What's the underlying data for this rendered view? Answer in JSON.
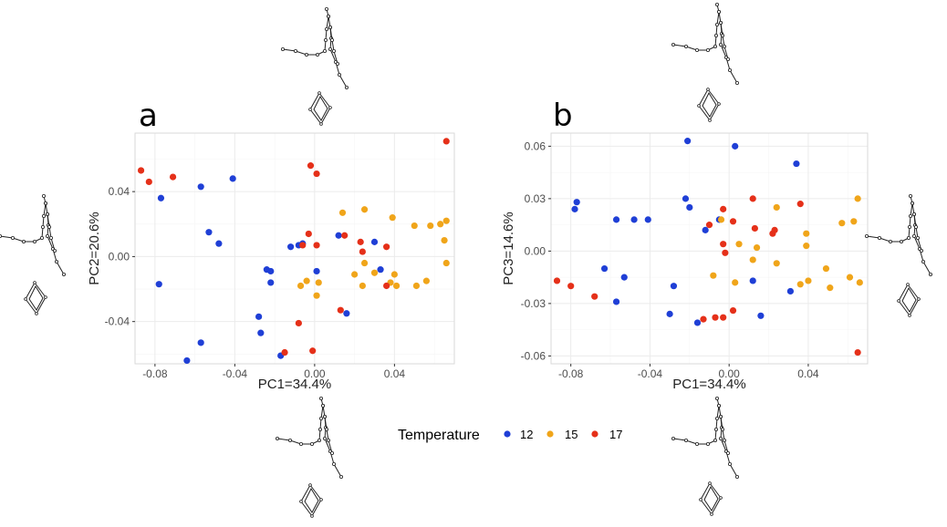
{
  "figure": {
    "panel_labels": [
      "a",
      "b"
    ],
    "legend": {
      "title": "Temperature",
      "items": [
        {
          "label": "12",
          "color": "#1f3fd6"
        },
        {
          "label": "15",
          "color": "#f0a51a"
        },
        {
          "label": "17",
          "color": "#e53019"
        }
      ],
      "position": "bottom-center"
    },
    "icons": [
      "wing-shape-icon",
      "genitalia-shape-icon"
    ]
  },
  "chart_data": [
    {
      "type": "scatter",
      "panel": "a",
      "title": "",
      "xlabel": "PC1=34.4%",
      "ylabel": "PC2=20.6%",
      "xlim": [
        -0.09,
        0.07
      ],
      "ylim": [
        -0.066,
        0.076
      ],
      "xticks": [
        -0.08,
        -0.04,
        0.0,
        0.04
      ],
      "xtick_labels": [
        "-0.08",
        "-0.04",
        "0.00",
        "0.04"
      ],
      "yticks": [
        -0.04,
        0.0,
        0.04
      ],
      "ytick_labels": [
        "-0.04",
        "0.00",
        "0.04"
      ],
      "grid": true,
      "series": [
        {
          "name": "12",
          "color": "#1f3fd6",
          "points": [
            [
              -0.077,
              0.036
            ],
            [
              -0.078,
              -0.017
            ],
            [
              -0.057,
              0.043
            ],
            [
              -0.041,
              0.048
            ],
            [
              -0.053,
              0.015
            ],
            [
              -0.048,
              0.008
            ],
            [
              -0.022,
              -0.009
            ],
            [
              -0.024,
              -0.008
            ],
            [
              -0.022,
              -0.016
            ],
            [
              -0.028,
              -0.037
            ],
            [
              -0.027,
              -0.047
            ],
            [
              -0.057,
              -0.053
            ],
            [
              -0.064,
              -0.064
            ],
            [
              -0.017,
              -0.061
            ],
            [
              -0.012,
              0.006
            ],
            [
              -0.008,
              0.007
            ],
            [
              -0.006,
              0.008
            ],
            [
              0.001,
              -0.009
            ],
            [
              0.012,
              0.013
            ],
            [
              0.016,
              -0.035
            ],
            [
              0.03,
              0.009
            ],
            [
              0.033,
              -0.008
            ]
          ]
        },
        {
          "name": "15",
          "color": "#f0a51a",
          "points": [
            [
              0.014,
              0.027
            ],
            [
              0.025,
              0.029
            ],
            [
              0.039,
              0.024
            ],
            [
              0.05,
              0.019
            ],
            [
              0.058,
              0.019
            ],
            [
              0.063,
              0.02
            ],
            [
              0.066,
              0.022
            ],
            [
              0.065,
              0.01
            ],
            [
              0.066,
              -0.004
            ],
            [
              0.025,
              -0.004
            ],
            [
              0.02,
              -0.011
            ],
            [
              0.03,
              -0.01
            ],
            [
              0.038,
              -0.016
            ],
            [
              0.04,
              -0.011
            ],
            [
              0.041,
              -0.018
            ],
            [
              0.051,
              -0.018
            ],
            [
              0.056,
              -0.015
            ],
            [
              -0.004,
              -0.015
            ],
            [
              -0.007,
              -0.018
            ],
            [
              0.002,
              -0.016
            ],
            [
              0.001,
              -0.024
            ],
            [
              0.024,
              -0.018
            ]
          ]
        },
        {
          "name": "17",
          "color": "#e53019",
          "points": [
            [
              -0.087,
              0.053
            ],
            [
              -0.083,
              0.046
            ],
            [
              -0.071,
              0.049
            ],
            [
              -0.002,
              0.056
            ],
            [
              0.001,
              0.051
            ],
            [
              0.066,
              0.071
            ],
            [
              -0.003,
              0.014
            ],
            [
              -0.006,
              0.007
            ],
            [
              0.001,
              0.007
            ],
            [
              0.015,
              0.013
            ],
            [
              0.023,
              0.009
            ],
            [
              0.024,
              0.003
            ],
            [
              0.036,
              0.006
            ],
            [
              0.036,
              -0.018
            ],
            [
              0.013,
              -0.033
            ],
            [
              -0.008,
              -0.041
            ],
            [
              -0.015,
              -0.059
            ],
            [
              -0.001,
              -0.058
            ]
          ]
        }
      ]
    },
    {
      "type": "scatter",
      "panel": "b",
      "title": "",
      "xlabel": "PC1=34.4%",
      "ylabel": "PC3=14.6%",
      "xlim": [
        -0.09,
        0.07
      ],
      "ylim": [
        -0.0645,
        0.0675
      ],
      "xticks": [
        -0.08,
        -0.04,
        0.0,
        0.04
      ],
      "xtick_labels": [
        "-0.08",
        "-0.04",
        "0.00",
        "0.04"
      ],
      "yticks": [
        -0.06,
        -0.03,
        0.0,
        0.03,
        0.06
      ],
      "ytick_labels": [
        "-0.06",
        "-0.03",
        "0.00",
        "0.03",
        "0.06"
      ],
      "grid": true,
      "series": [
        {
          "name": "12",
          "color": "#1f3fd6",
          "points": [
            [
              -0.077,
              0.028
            ],
            [
              -0.078,
              0.024
            ],
            [
              -0.057,
              0.018
            ],
            [
              -0.048,
              0.018
            ],
            [
              -0.041,
              0.018
            ],
            [
              -0.022,
              0.03
            ],
            [
              -0.02,
              0.025
            ],
            [
              -0.021,
              0.063
            ],
            [
              0.003,
              0.06
            ],
            [
              0.034,
              0.05
            ],
            [
              -0.063,
              -0.01
            ],
            [
              -0.053,
              -0.015
            ],
            [
              -0.057,
              -0.029
            ],
            [
              -0.028,
              -0.02
            ],
            [
              -0.03,
              -0.036
            ],
            [
              -0.016,
              -0.041
            ],
            [
              -0.012,
              0.012
            ],
            [
              -0.005,
              0.018
            ],
            [
              0.012,
              -0.017
            ],
            [
              0.016,
              -0.037
            ],
            [
              0.031,
              -0.023
            ]
          ]
        },
        {
          "name": "15",
          "color": "#f0a51a",
          "points": [
            [
              -0.004,
              0.018
            ],
            [
              0.005,
              0.004
            ],
            [
              0.014,
              0.002
            ],
            [
              0.024,
              0.025
            ],
            [
              0.024,
              -0.007
            ],
            [
              0.039,
              0.01
            ],
            [
              0.039,
              0.003
            ],
            [
              0.04,
              -0.017
            ],
            [
              0.036,
              -0.019
            ],
            [
              0.049,
              -0.01
            ],
            [
              0.051,
              -0.021
            ],
            [
              0.057,
              0.016
            ],
            [
              0.063,
              0.017
            ],
            [
              0.065,
              0.03
            ],
            [
              0.066,
              -0.018
            ],
            [
              0.061,
              -0.015
            ],
            [
              -0.008,
              -0.014
            ],
            [
              0.003,
              -0.018
            ],
            [
              0.012,
              -0.005
            ]
          ]
        },
        {
          "name": "17",
          "color": "#e53019",
          "points": [
            [
              -0.087,
              -0.017
            ],
            [
              -0.08,
              -0.02
            ],
            [
              -0.068,
              -0.026
            ],
            [
              -0.013,
              -0.039
            ],
            [
              -0.007,
              -0.038
            ],
            [
              -0.003,
              -0.038
            ],
            [
              0.002,
              -0.034
            ],
            [
              -0.01,
              0.015
            ],
            [
              -0.003,
              0.024
            ],
            [
              0.002,
              0.017
            ],
            [
              -0.003,
              0.004
            ],
            [
              -0.002,
              -0.001
            ],
            [
              0.012,
              0.03
            ],
            [
              0.013,
              0.013
            ],
            [
              0.022,
              0.01
            ],
            [
              0.023,
              0.012
            ],
            [
              0.036,
              0.027
            ],
            [
              0.065,
              -0.058
            ]
          ]
        }
      ]
    }
  ]
}
